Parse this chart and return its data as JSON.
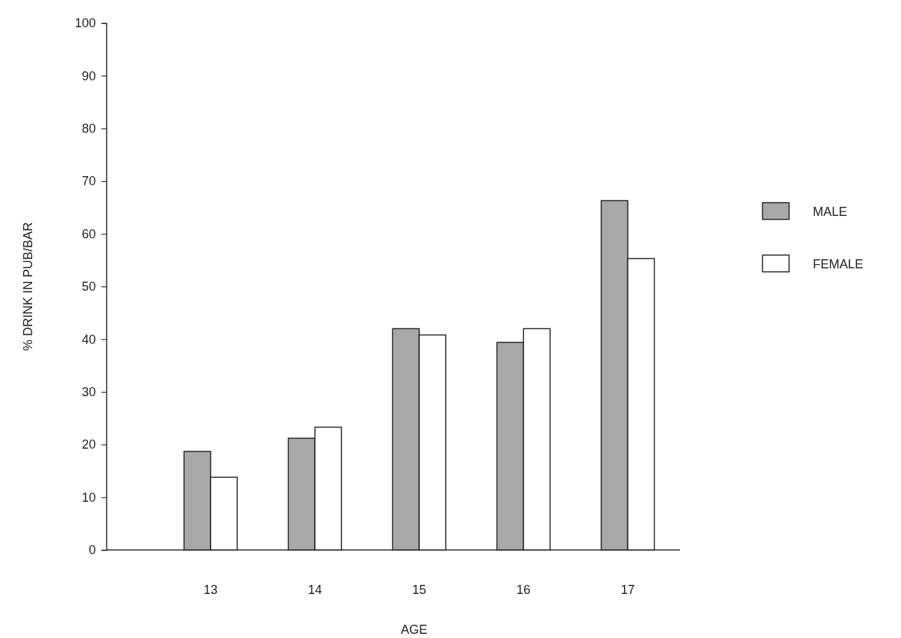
{
  "chart_data": {
    "type": "bar",
    "xlabel": "AGE",
    "ylabel": "% DRINK IN PUB/BAR",
    "categories": [
      "13",
      "14",
      "15",
      "16",
      "17"
    ],
    "series": [
      {
        "name": "MALE",
        "color": "#a8a8a8",
        "values": [
          18.7,
          21.2,
          42.0,
          39.4,
          66.3
        ]
      },
      {
        "name": "FEMALE",
        "color": "#ffffff",
        "values": [
          13.8,
          23.3,
          40.8,
          42.0,
          55.3
        ]
      }
    ],
    "ylim": [
      0,
      100
    ],
    "yticks": [
      0,
      10,
      20,
      30,
      40,
      50,
      60,
      70,
      80,
      90,
      100
    ],
    "grid": false,
    "legend": "right"
  }
}
